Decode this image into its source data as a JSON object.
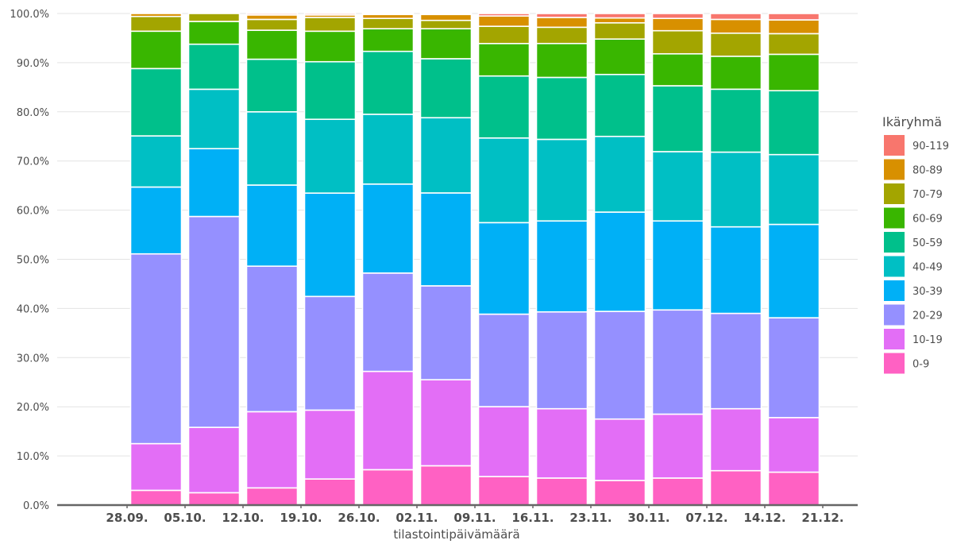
{
  "chart_data": {
    "type": "bar",
    "stacked": "percent",
    "xlabel": "tilastointipäivämäärä",
    "ylabel": "",
    "ylim": [
      0,
      100
    ],
    "yticks": [
      "0.0%",
      "10.0%",
      "20.0%",
      "30.0%",
      "40.0%",
      "50.0%",
      "60.0%",
      "70.0%",
      "80.0%",
      "90.0%",
      "100.0%"
    ],
    "x_ticks": [
      "28.09.",
      "05.10.",
      "12.10.",
      "19.10.",
      "26.10.",
      "02.11.",
      "09.11.",
      "16.11.",
      "23.11.",
      "30.11.",
      "07.12.",
      "14.12.",
      "21.12."
    ],
    "grid": "horizontal",
    "legend": {
      "title": "Ikäryhmä",
      "position": "right"
    },
    "series": [
      {
        "name": "0-9",
        "color": "#FF61C3",
        "values": [
          3.0,
          2.5,
          3.5,
          5.3,
          7.2,
          8.0,
          5.8,
          5.5,
          5.0,
          5.5,
          7.0,
          6.7
        ]
      },
      {
        "name": "10-19",
        "color": "#E36EF6",
        "values": [
          9.5,
          13.2,
          15.5,
          14.0,
          20.0,
          17.5,
          14.2,
          14.1,
          12.5,
          13.0,
          12.6,
          11.1
        ]
      },
      {
        "name": "20-29",
        "color": "#9590FF",
        "values": [
          38.6,
          42.6,
          29.6,
          23.1,
          20.0,
          19.1,
          18.8,
          19.7,
          21.9,
          21.2,
          19.4,
          20.3
        ]
      },
      {
        "name": "30-39",
        "color": "#00B0F6",
        "values": [
          13.6,
          13.7,
          16.5,
          21.0,
          18.1,
          18.9,
          18.6,
          18.5,
          20.2,
          18.1,
          17.6,
          19.0
        ]
      },
      {
        "name": "40-49",
        "color": "#00BFC4",
        "values": [
          10.4,
          12.0,
          14.9,
          15.0,
          14.2,
          15.3,
          17.2,
          16.6,
          15.4,
          14.1,
          15.2,
          14.2
        ]
      },
      {
        "name": "50-59",
        "color": "#00C08B",
        "values": [
          13.7,
          9.1,
          10.7,
          11.7,
          12.8,
          12.0,
          12.6,
          12.6,
          12.6,
          13.4,
          12.8,
          13.0
        ]
      },
      {
        "name": "60-69",
        "color": "#39B600",
        "values": [
          7.6,
          4.6,
          5.9,
          6.2,
          4.6,
          6.1,
          6.6,
          6.9,
          7.2,
          6.5,
          6.7,
          7.4
        ]
      },
      {
        "name": "70-79",
        "color": "#A3A500",
        "values": [
          3.0,
          1.6,
          2.2,
          2.8,
          2.1,
          1.7,
          3.5,
          3.3,
          3.3,
          4.7,
          4.7,
          4.2
        ]
      },
      {
        "name": "80-89",
        "color": "#D89000",
        "values": [
          0.6,
          0.0,
          0.9,
          0.5,
          0.8,
          1.2,
          2.1,
          2.0,
          1.0,
          2.5,
          2.8,
          2.8
        ]
      },
      {
        "name": "90-119",
        "color": "#F8766D",
        "values": [
          0.0,
          0.0,
          0.3,
          0.3,
          0.2,
          0.2,
          0.5,
          0.8,
          0.9,
          1.0,
          1.2,
          1.3
        ]
      }
    ]
  }
}
